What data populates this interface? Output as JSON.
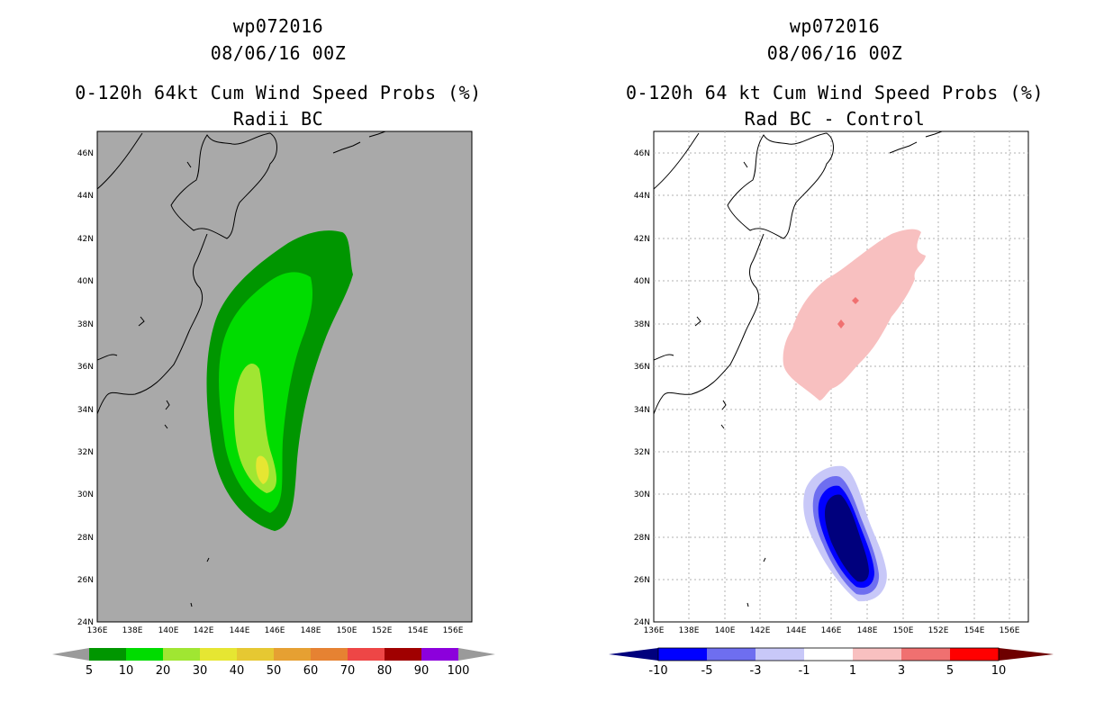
{
  "left": {
    "title_line1": "wp072016",
    "title_line2": "08/06/16 00Z",
    "title_line3": "0-120h 64kt Cum Wind Speed Probs (%)",
    "title_line4": "Radii BC",
    "background": "#a9a9a9",
    "colorbar": {
      "colors": [
        "#009600",
        "#00dc00",
        "#a0e632",
        "#e6e632",
        "#e6c832",
        "#e6a032",
        "#e68232",
        "#ee4646",
        "#a00000",
        "#8c00dc"
      ],
      "end_left": "#9a9a9a",
      "end_right": "#9a9a9a",
      "labels": [
        "5",
        "10",
        "20",
        "30",
        "40",
        "50",
        "60",
        "70",
        "80",
        "90",
        "100"
      ]
    }
  },
  "right": {
    "title_line1": "wp072016",
    "title_line2": "08/06/16 00Z",
    "title_line3": "0-120h 64 kt Cum Wind Speed Probs (%)",
    "title_line4": "Rad BC - Control",
    "background": "#ffffff",
    "colorbar": {
      "colors": [
        "#0000ff",
        "#6e6ef0",
        "#c8c8f8",
        "#ffffff",
        "#f8c0c0",
        "#f07070",
        "#ff0000"
      ],
      "end_left": "#00007d",
      "end_right": "#6e0000",
      "labels": [
        "-10",
        "-5",
        "-3",
        "-1",
        "1",
        "3",
        "5",
        "10"
      ]
    }
  },
  "map": {
    "lon_labels": [
      "136E",
      "138E",
      "140E",
      "142E",
      "144E",
      "146E",
      "148E",
      "150E",
      "152E",
      "154E",
      "156E"
    ],
    "lat_labels": [
      "24N",
      "26N",
      "28N",
      "30N",
      "32N",
      "34N",
      "36N",
      "38N",
      "40N",
      "42N",
      "44N",
      "46N"
    ]
  }
}
